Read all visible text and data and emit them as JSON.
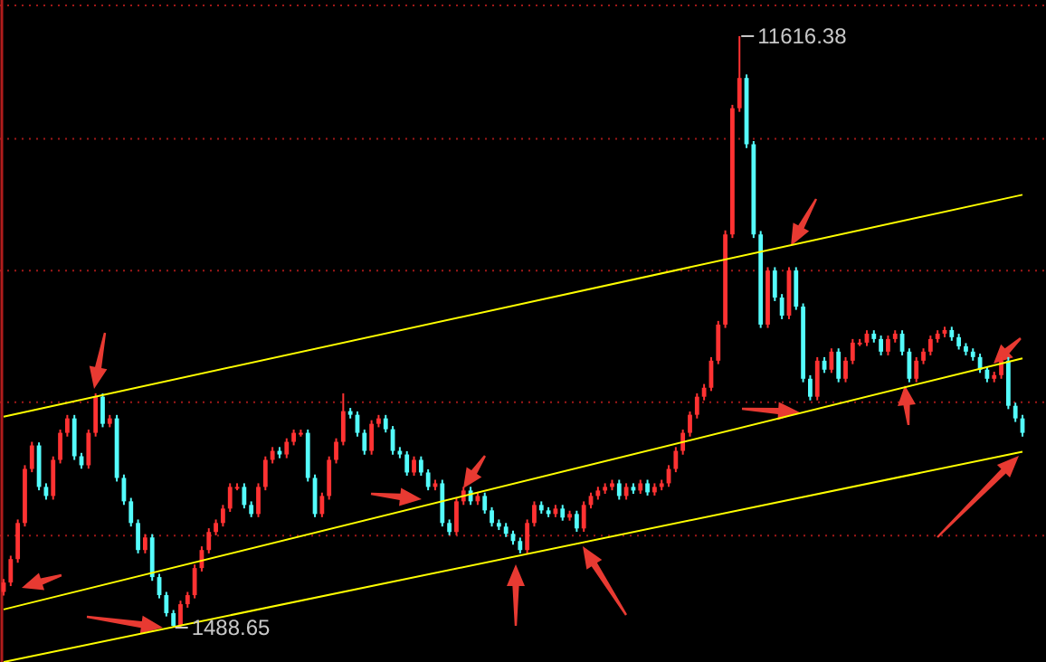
{
  "chart_data": {
    "type": "candlestick",
    "categories": [
      null,
      null,
      null,
      null,
      null,
      null,
      null,
      null,
      null,
      null,
      null,
      null,
      null,
      null,
      null,
      null,
      null,
      null,
      null,
      null,
      null,
      null,
      null,
      null,
      null,
      null,
      null,
      null,
      null,
      null,
      null,
      null,
      null,
      null,
      null,
      null,
      null,
      null,
      null,
      null,
      null,
      null,
      null,
      null,
      null,
      null,
      null,
      null,
      null,
      null,
      null,
      null,
      null,
      null,
      null,
      null,
      null,
      null,
      null,
      null,
      null,
      null,
      null,
      null,
      null,
      null,
      null,
      null,
      null,
      null,
      null,
      null,
      null,
      null,
      null,
      null,
      null,
      null,
      null,
      null,
      null,
      null,
      null,
      null,
      null,
      null,
      null,
      null,
      null,
      null,
      null,
      null,
      null,
      null,
      null,
      null,
      null,
      null,
      null,
      null,
      null,
      null,
      null,
      null,
      null,
      null,
      null,
      null,
      null,
      null,
      null,
      null,
      null,
      null,
      null,
      null,
      null,
      null,
      null,
      null,
      null,
      null,
      null,
      null,
      null,
      null,
      null,
      null,
      null,
      null,
      null,
      null,
      null,
      null,
      null,
      null,
      null,
      null,
      null,
      null,
      null,
      null,
      null,
      null,
      null
    ],
    "ohlc": [
      [
        2100,
        2320,
        2040,
        2261
      ],
      [
        2261,
        2720,
        2200,
        2662
      ],
      [
        2662,
        3340,
        2600,
        3280
      ],
      [
        3280,
        4270,
        3220,
        4206
      ],
      [
        4206,
        4670,
        4150,
        4608
      ],
      [
        4608,
        4660,
        3840,
        3898
      ],
      [
        3898,
        3960,
        3680,
        3743
      ],
      [
        3743,
        4420,
        3680,
        4361
      ],
      [
        4361,
        4880,
        4300,
        4824
      ],
      [
        4824,
        5130,
        4760,
        5071
      ],
      [
        5071,
        5130,
        4360,
        4423
      ],
      [
        4423,
        4480,
        4210,
        4268
      ],
      [
        4268,
        4880,
        4210,
        4824
      ],
      [
        4824,
        5500,
        4760,
        5442
      ],
      [
        5442,
        5500,
        4920,
        4978
      ],
      [
        4978,
        5130,
        4920,
        5071
      ],
      [
        5071,
        5130,
        3990,
        4052
      ],
      [
        4052,
        4110,
        3590,
        3651
      ],
      [
        3651,
        3710,
        3220,
        3280
      ],
      [
        3280,
        3340,
        2760,
        2817
      ],
      [
        2817,
        3090,
        2760,
        3033
      ],
      [
        3033,
        3090,
        2290,
        2354
      ],
      [
        2354,
        2410,
        1990,
        2045
      ],
      [
        2045,
        2100,
        1680,
        1736
      ],
      [
        1736,
        1790,
        1488.65,
        1520
      ],
      [
        1520,
        1950,
        1500,
        1890
      ],
      [
        1890,
        2100,
        1830,
        2045
      ],
      [
        2045,
        2570,
        1990,
        2508
      ],
      [
        2508,
        2880,
        2450,
        2817
      ],
      [
        2817,
        3190,
        2760,
        3126
      ],
      [
        3126,
        3340,
        3070,
        3280
      ],
      [
        3280,
        3590,
        3220,
        3527
      ],
      [
        3527,
        3960,
        3470,
        3898
      ],
      [
        3898,
        3960,
        3840,
        3898
      ],
      [
        3898,
        3960,
        3530,
        3589
      ],
      [
        3589,
        3650,
        3380,
        3434
      ],
      [
        3434,
        3960,
        3380,
        3898
      ],
      [
        3898,
        4420,
        3840,
        4361
      ],
      [
        4361,
        4580,
        4300,
        4515
      ],
      [
        4515,
        4580,
        4390,
        4453
      ],
      [
        4453,
        4730,
        4390,
        4670
      ],
      [
        4670,
        4880,
        4610,
        4824
      ],
      [
        4824,
        4880,
        4760,
        4824
      ],
      [
        4824,
        4880,
        3990,
        4052
      ],
      [
        4052,
        4110,
        3380,
        3434
      ],
      [
        3434,
        3800,
        3380,
        3743
      ],
      [
        3743,
        4420,
        3680,
        4361
      ],
      [
        4361,
        4730,
        4300,
        4670
      ],
      [
        4670,
        5500,
        4610,
        5195
      ],
      [
        5195,
        5250,
        5070,
        5133
      ],
      [
        5133,
        5190,
        4760,
        4824
      ],
      [
        4824,
        4880,
        4450,
        4515
      ],
      [
        4515,
        5040,
        4450,
        4978
      ],
      [
        4978,
        5130,
        4920,
        5071
      ],
      [
        5071,
        5130,
        4830,
        4886
      ],
      [
        4886,
        4940,
        4450,
        4515
      ],
      [
        4515,
        4580,
        4390,
        4453
      ],
      [
        4453,
        4510,
        4090,
        4145
      ],
      [
        4145,
        4420,
        4090,
        4361
      ],
      [
        4361,
        4420,
        4090,
        4145
      ],
      [
        4145,
        4200,
        3840,
        3898
      ],
      [
        3898,
        4020,
        3840,
        3959
      ],
      [
        3959,
        4020,
        3220,
        3280
      ],
      [
        3280,
        3340,
        3070,
        3126
      ],
      [
        3126,
        3710,
        3070,
        3651
      ],
      [
        3651,
        3900,
        3590,
        3836
      ],
      [
        3836,
        3900,
        3590,
        3651
      ],
      [
        3651,
        3800,
        3590,
        3743
      ],
      [
        3743,
        3800,
        3440,
        3496
      ],
      [
        3496,
        3550,
        3220,
        3280
      ],
      [
        3280,
        3340,
        3160,
        3218
      ],
      [
        3218,
        3280,
        3040,
        3095
      ],
      [
        3095,
        3150,
        2910,
        2971
      ],
      [
        2971,
        3030,
        2760,
        2817
      ],
      [
        2817,
        3340,
        2760,
        3280
      ],
      [
        3280,
        3650,
        3220,
        3589
      ],
      [
        3589,
        3650,
        3440,
        3496
      ],
      [
        3496,
        3550,
        3380,
        3434
      ],
      [
        3434,
        3590,
        3380,
        3527
      ],
      [
        3527,
        3590,
        3320,
        3373
      ],
      [
        3373,
        3490,
        3320,
        3434
      ],
      [
        3434,
        3490,
        3130,
        3187
      ],
      [
        3187,
        3650,
        3130,
        3589
      ],
      [
        3589,
        3800,
        3530,
        3743
      ],
      [
        3743,
        3900,
        3680,
        3836
      ],
      [
        3836,
        3960,
        3780,
        3898
      ],
      [
        3898,
        4020,
        3840,
        3959
      ],
      [
        3959,
        4020,
        3680,
        3743
      ],
      [
        3743,
        3960,
        3680,
        3898
      ],
      [
        3898,
        3960,
        3780,
        3836
      ],
      [
        3836,
        4020,
        3780,
        3959
      ],
      [
        3959,
        4020,
        3750,
        3805
      ],
      [
        3805,
        3960,
        3750,
        3898
      ],
      [
        3898,
        4020,
        3840,
        3959
      ],
      [
        3959,
        4270,
        3900,
        4206
      ],
      [
        4206,
        4580,
        4150,
        4515
      ],
      [
        4515,
        4880,
        4450,
        4824
      ],
      [
        4824,
        5190,
        4760,
        5133
      ],
      [
        5133,
        5500,
        5070,
        5442
      ],
      [
        5442,
        5660,
        5380,
        5596
      ],
      [
        5596,
        6120,
        5540,
        6059
      ],
      [
        6059,
        6740,
        6000,
        6677
      ],
      [
        6677,
        8290,
        6620,
        8221
      ],
      [
        8221,
        10440,
        8160,
        10382
      ],
      [
        10382,
        11616.38,
        10320,
        10900
      ],
      [
        10900,
        10960,
        9700,
        9765
      ],
      [
        9765,
        9820,
        8160,
        8221
      ],
      [
        8221,
        8280,
        6620,
        6677
      ],
      [
        6677,
        7660,
        6620,
        7603
      ],
      [
        7603,
        7660,
        7080,
        7140
      ],
      [
        7140,
        7200,
        6770,
        6831
      ],
      [
        6831,
        7660,
        6770,
        7603
      ],
      [
        7603,
        7660,
        6930,
        6985
      ],
      [
        6985,
        7040,
        5690,
        5750
      ],
      [
        5750,
        5810,
        5380,
        5442
      ],
      [
        5442,
        6120,
        5380,
        6059
      ],
      [
        6059,
        6120,
        5850,
        5905
      ],
      [
        5905,
        6270,
        5850,
        6214
      ],
      [
        6214,
        6270,
        5690,
        5750
      ],
      [
        5750,
        6120,
        5690,
        6059
      ],
      [
        6059,
        6430,
        6000,
        6368
      ],
      [
        6368,
        6430,
        6310,
        6368
      ],
      [
        6368,
        6580,
        6310,
        6522
      ],
      [
        6522,
        6580,
        6370,
        6430
      ],
      [
        6430,
        6490,
        6150,
        6214
      ],
      [
        6214,
        6490,
        6150,
        6430
      ],
      [
        6430,
        6580,
        6370,
        6522
      ],
      [
        6522,
        6580,
        6150,
        6214
      ],
      [
        6214,
        6270,
        5690,
        5750
      ],
      [
        5750,
        6120,
        5690,
        6059
      ],
      [
        6059,
        6270,
        6000,
        6214
      ],
      [
        6214,
        6490,
        6150,
        6430
      ],
      [
        6430,
        6580,
        6370,
        6522
      ],
      [
        6522,
        6640,
        6460,
        6584
      ],
      [
        6584,
        6640,
        6400,
        6461
      ],
      [
        6461,
        6520,
        6250,
        6306
      ],
      [
        6306,
        6360,
        6150,
        6214
      ],
      [
        6214,
        6270,
        6060,
        6121
      ],
      [
        6121,
        6180,
        5850,
        5905
      ],
      [
        5905,
        5960,
        5690,
        5750
      ],
      [
        5750,
        5870,
        5690,
        5812
      ],
      [
        5812,
        6120,
        5750,
        6059
      ],
      [
        6059,
        6120,
        5230,
        5287
      ],
      [
        5287,
        5340,
        5010,
        5071
      ],
      [
        5071,
        5130,
        4760,
        4824
      ]
    ],
    "series": [
      {
        "type": "line",
        "color": "#ffff00",
        "values": [
          5100,
          null,
          null,
          null,
          null,
          null,
          null,
          null,
          null,
          null,
          null,
          null,
          null,
          null,
          null,
          null,
          null,
          null,
          null,
          null,
          null,
          null,
          null,
          null,
          null,
          null,
          null,
          null,
          null,
          null,
          null,
          null,
          null,
          null,
          null,
          null,
          null,
          null,
          null,
          null,
          null,
          null,
          null,
          null,
          null,
          null,
          null,
          null,
          null,
          null,
          null,
          null,
          null,
          null,
          null,
          null,
          null,
          null,
          null,
          null,
          null,
          null,
          null,
          null,
          null,
          null,
          null,
          null,
          null,
          null,
          null,
          null,
          null,
          null,
          null,
          null,
          null,
          null,
          null,
          null,
          null,
          null,
          null,
          null,
          null,
          null,
          null,
          null,
          null,
          null,
          null,
          null,
          null,
          null,
          null,
          null,
          null,
          null,
          null,
          null,
          null,
          null,
          null,
          null,
          null,
          null,
          null,
          null,
          null,
          null,
          null,
          null,
          null,
          null,
          null,
          null,
          null,
          null,
          null,
          null,
          null,
          null,
          null,
          null,
          null,
          null,
          null,
          null,
          null,
          null,
          null,
          null,
          null,
          null,
          null,
          null,
          null,
          null,
          null,
          null,
          null,
          null,
          null,
          null,
          8900
        ]
      },
      {
        "type": "line",
        "color": "#ffff00",
        "values": [
          1800,
          null,
          null,
          null,
          null,
          null,
          null,
          null,
          null,
          null,
          null,
          null,
          null,
          null,
          null,
          null,
          null,
          null,
          null,
          null,
          null,
          null,
          null,
          null,
          null,
          null,
          null,
          null,
          null,
          null,
          null,
          null,
          null,
          null,
          null,
          null,
          null,
          null,
          null,
          null,
          null,
          null,
          null,
          null,
          null,
          null,
          null,
          null,
          null,
          null,
          null,
          null,
          null,
          null,
          null,
          null,
          null,
          null,
          null,
          null,
          null,
          null,
          null,
          null,
          null,
          null,
          null,
          null,
          null,
          null,
          null,
          null,
          null,
          null,
          null,
          null,
          null,
          null,
          null,
          null,
          null,
          null,
          null,
          null,
          null,
          null,
          null,
          null,
          null,
          null,
          null,
          null,
          null,
          null,
          null,
          null,
          null,
          null,
          null,
          null,
          null,
          null,
          null,
          null,
          null,
          null,
          null,
          null,
          null,
          null,
          null,
          null,
          null,
          null,
          null,
          null,
          null,
          null,
          null,
          null,
          null,
          null,
          null,
          null,
          null,
          null,
          null,
          null,
          null,
          null,
          null,
          null,
          null,
          null,
          null,
          null,
          null,
          null,
          null,
          null,
          null,
          null,
          null,
          null,
          6100
        ]
      },
      {
        "type": "line",
        "color": "#ffff00",
        "values": [
          900,
          null,
          null,
          null,
          null,
          null,
          null,
          null,
          null,
          null,
          null,
          null,
          null,
          null,
          null,
          null,
          null,
          null,
          null,
          null,
          null,
          null,
          null,
          null,
          null,
          null,
          null,
          null,
          null,
          null,
          null,
          null,
          null,
          null,
          null,
          null,
          null,
          null,
          null,
          null,
          null,
          null,
          null,
          null,
          null,
          null,
          null,
          null,
          null,
          null,
          null,
          null,
          null,
          null,
          null,
          null,
          null,
          null,
          null,
          null,
          null,
          null,
          null,
          null,
          null,
          null,
          null,
          null,
          null,
          null,
          null,
          null,
          null,
          null,
          null,
          null,
          null,
          null,
          null,
          null,
          null,
          null,
          null,
          null,
          null,
          null,
          null,
          null,
          null,
          null,
          null,
          null,
          null,
          null,
          null,
          null,
          null,
          null,
          null,
          null,
          null,
          null,
          null,
          null,
          null,
          null,
          null,
          null,
          null,
          null,
          null,
          null,
          null,
          null,
          null,
          null,
          null,
          null,
          null,
          null,
          null,
          null,
          null,
          null,
          null,
          null,
          null,
          null,
          null,
          null,
          null,
          null,
          null,
          null,
          null,
          null,
          null,
          null,
          null,
          null,
          null,
          null,
          null,
          null,
          4500
        ]
      }
    ],
    "ylim": [
      900,
      12235
    ],
    "yticks": [
      {
        "value": 3063,
        "label": null
      },
      {
        "value": 5348,
        "label": null
      },
      {
        "value": 7603,
        "label": null
      },
      {
        "value": 9857,
        "label": null
      },
      {
        "value": 12142,
        "label": null
      }
    ],
    "grid": "y",
    "annotations": [
      "11616.38",
      "1488.65"
    ]
  }
}
